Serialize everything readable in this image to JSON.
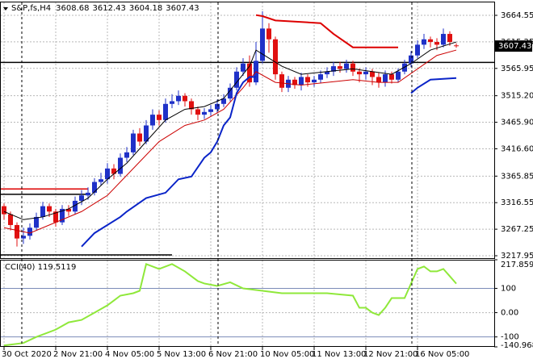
{
  "chart_data": {
    "type": "candlestick",
    "title": "S&P,fs,H4",
    "categories": [
      "30 Oct 2020",
      null,
      null,
      null,
      null,
      null,
      null,
      null,
      "2 Nov 21:00",
      null,
      null,
      null,
      null,
      null,
      null,
      null,
      "4 Nov 05:00",
      null,
      null,
      null,
      null,
      null,
      null,
      null,
      "5 Nov 13:00",
      null,
      null,
      null,
      null,
      null,
      null,
      null,
      "6 Nov 21:00",
      null,
      null,
      null,
      null,
      null,
      null,
      null,
      "10 Nov 05:00",
      null,
      null,
      null,
      null,
      null,
      null,
      null,
      "11 Nov 13:00",
      null,
      null,
      null,
      null,
      null,
      null,
      null,
      "12 Nov 21:00",
      null,
      null,
      null,
      null,
      null,
      null,
      null,
      "16 Nov 05:00",
      null,
      null,
      null,
      null,
      null,
      null
    ],
    "open": [
      3310,
      3295,
      3275,
      3250,
      3255,
      3270,
      3290,
      3310,
      3300,
      3280,
      3305,
      3300,
      3320,
      3330,
      3335,
      3355,
      3360,
      3380,
      3370,
      3400,
      3410,
      3445,
      3430,
      3460,
      3480,
      3470,
      3500,
      3505,
      3515,
      3505,
      3490,
      3480,
      3485,
      3490,
      3500,
      3510,
      3530,
      3560,
      3575,
      3540,
      3580,
      3640,
      3620,
      3555,
      3530,
      3545,
      3535,
      3550,
      3540,
      3545,
      3555,
      3560,
      3570,
      3565,
      3575,
      3560,
      3555,
      3560,
      3550,
      3540,
      3555,
      3545,
      3560,
      3575,
      3590,
      3610,
      3620,
      3615,
      3610,
      3630,
      3608.68
    ],
    "high": [
      3315,
      3300,
      3280,
      3270,
      3278,
      3298,
      3318,
      3315,
      3305,
      3312,
      3312,
      3328,
      3340,
      3345,
      3362,
      3372,
      3390,
      3388,
      3408,
      3420,
      3452,
      3455,
      3470,
      3490,
      3488,
      3510,
      3518,
      3525,
      3520,
      3510,
      3495,
      3492,
      3498,
      3508,
      3518,
      3538,
      3568,
      3585,
      3590,
      3615,
      3672,
      3650,
      3625,
      3560,
      3552,
      3550,
      3558,
      3555,
      3552,
      3562,
      3568,
      3578,
      3578,
      3582,
      3580,
      3566,
      3568,
      3565,
      3558,
      3562,
      3560,
      3566,
      3582,
      3598,
      3618,
      3630,
      3625,
      3622,
      3640,
      3635,
      3612.43
    ],
    "low": [
      3285,
      3265,
      3235,
      3240,
      3248,
      3265,
      3285,
      3290,
      3272,
      3275,
      3292,
      3295,
      3312,
      3322,
      3330,
      3348,
      3352,
      3360,
      3365,
      3392,
      3405,
      3422,
      3425,
      3452,
      3460,
      3465,
      3492,
      3498,
      3495,
      3480,
      3470,
      3472,
      3478,
      3484,
      3494,
      3505,
      3525,
      3552,
      3532,
      3535,
      3575,
      3595,
      3545,
      3522,
      3522,
      3528,
      3525,
      3532,
      3532,
      3538,
      3548,
      3552,
      3558,
      3558,
      3552,
      3540,
      3545,
      3535,
      3530,
      3532,
      3538,
      3540,
      3555,
      3568,
      3585,
      3602,
      3605,
      3600,
      3605,
      3608,
      3604.18
    ],
    "close": [
      3295,
      3275,
      3250,
      3255,
      3270,
      3290,
      3310,
      3300,
      3280,
      3305,
      3300,
      3320,
      3330,
      3335,
      3355,
      3360,
      3380,
      3370,
      3400,
      3410,
      3445,
      3430,
      3460,
      3480,
      3470,
      3500,
      3505,
      3515,
      3505,
      3490,
      3480,
      3485,
      3490,
      3500,
      3510,
      3530,
      3560,
      3575,
      3540,
      3580,
      3640,
      3620,
      3555,
      3530,
      3545,
      3535,
      3550,
      3540,
      3545,
      3555,
      3560,
      3570,
      3565,
      3575,
      3560,
      3555,
      3560,
      3550,
      3540,
      3555,
      3545,
      3560,
      3575,
      3590,
      3610,
      3620,
      3615,
      3610,
      3630,
      3615,
      3607.43
    ],
    "up_color": "#1f31c8",
    "down_color": "#e01010",
    "overlays": [
      {
        "color": "#000000",
        "x": [
          0,
          3,
          6,
          10,
          13,
          16,
          19,
          22,
          25,
          28,
          31,
          34,
          36,
          38,
          39,
          41,
          43,
          46,
          50,
          54,
          57,
          60,
          63,
          66,
          70
        ],
        "values": [
          3300,
          3285,
          3290,
          3305,
          3325,
          3360,
          3390,
          3430,
          3470,
          3490,
          3495,
          3510,
          3540,
          3570,
          3600,
          3585,
          3570,
          3555,
          3560,
          3565,
          3560,
          3555,
          3575,
          3600,
          3615
        ]
      },
      {
        "color": "#cc0000",
        "x": [
          0,
          4,
          8,
          12,
          16,
          20,
          24,
          28,
          31,
          34,
          37,
          39,
          42,
          46,
          50,
          54,
          58,
          61,
          64,
          67,
          70
        ],
        "values": [
          3270,
          3260,
          3280,
          3300,
          3330,
          3380,
          3430,
          3460,
          3470,
          3490,
          3530,
          3560,
          3540,
          3535,
          3540,
          3545,
          3540,
          3540,
          3565,
          3590,
          3600
        ]
      },
      {
        "color": "#0a24c8",
        "x": [
          12,
          14,
          18,
          19,
          22,
          25,
          27,
          29,
          31,
          32,
          33,
          34,
          35,
          36,
          37,
          38,
          39,
          50,
          63,
          64,
          66,
          70
        ],
        "values": [
          3235,
          3260,
          3290,
          3300,
          3325,
          3335,
          3360,
          3365,
          3400,
          3410,
          3430,
          3460,
          3475,
          3520,
          3540,
          3550,
          3550,
          null,
          3520,
          3530,
          3545,
          3548
        ]
      },
      {
        "color": "#dd0000",
        "x": [
          39,
          40,
          42,
          49,
          51,
          54,
          61
        ],
        "values": [
          3665,
          3663,
          3655,
          3650,
          3630,
          3605,
          3605
        ]
      }
    ],
    "levels": [
      {
        "value": 3577,
        "from": 0,
        "to": 70,
        "color": "#000000"
      },
      {
        "value": 3342,
        "from": 0,
        "to": 13,
        "color": "#dd0000"
      },
      {
        "value": 3332,
        "from": 0,
        "to": 13,
        "color": "#000000"
      },
      {
        "value": 3219.5,
        "from": 0,
        "to": 26,
        "color": "#000000"
      }
    ],
    "ylim": [
      3213.5,
      3693
    ],
    "yticks": [
      3664.55,
      3615.25,
      3565.95,
      {
        "value": 3515.2,
        "label": "3515.20"
      },
      {
        "value": 3465.9,
        "label": "3465.90"
      },
      {
        "value": 3416.6,
        "label": "3416.60"
      },
      3365.85,
      3316.55,
      3267.25,
      3217.95
    ],
    "grid": true,
    "indicator": {
      "type": "line",
      "title": "CCI(40) 119.5119",
      "color": "#8fe83a",
      "x": [
        0,
        3,
        5,
        8,
        10,
        12,
        14,
        16,
        17,
        18,
        20,
        21,
        22,
        24,
        26,
        28,
        30,
        31,
        33,
        35,
        37,
        40,
        43,
        46,
        50,
        52,
        54,
        55,
        56,
        57,
        58,
        59,
        60,
        62,
        64,
        65,
        66,
        67,
        68,
        69,
        70
      ],
      "values": [
        -135,
        -125,
        -100,
        -70,
        -40,
        -30,
        0,
        30,
        50,
        70,
        80,
        90,
        200,
        180,
        200,
        170,
        130,
        120,
        110,
        125,
        100,
        90,
        80,
        80,
        80,
        75,
        70,
        20,
        20,
        0,
        -10,
        20,
        60,
        60,
        180,
        190,
        170,
        170,
        180,
        150,
        119.5119
      ],
      "ylim": [
        -140.9685,
        217.8598
      ],
      "yticks": [
        217.8598,
        100,
        {
          "value": 0,
          "label": "0.00"
        },
        -100,
        -140.9685
      ]
    }
  }
}
